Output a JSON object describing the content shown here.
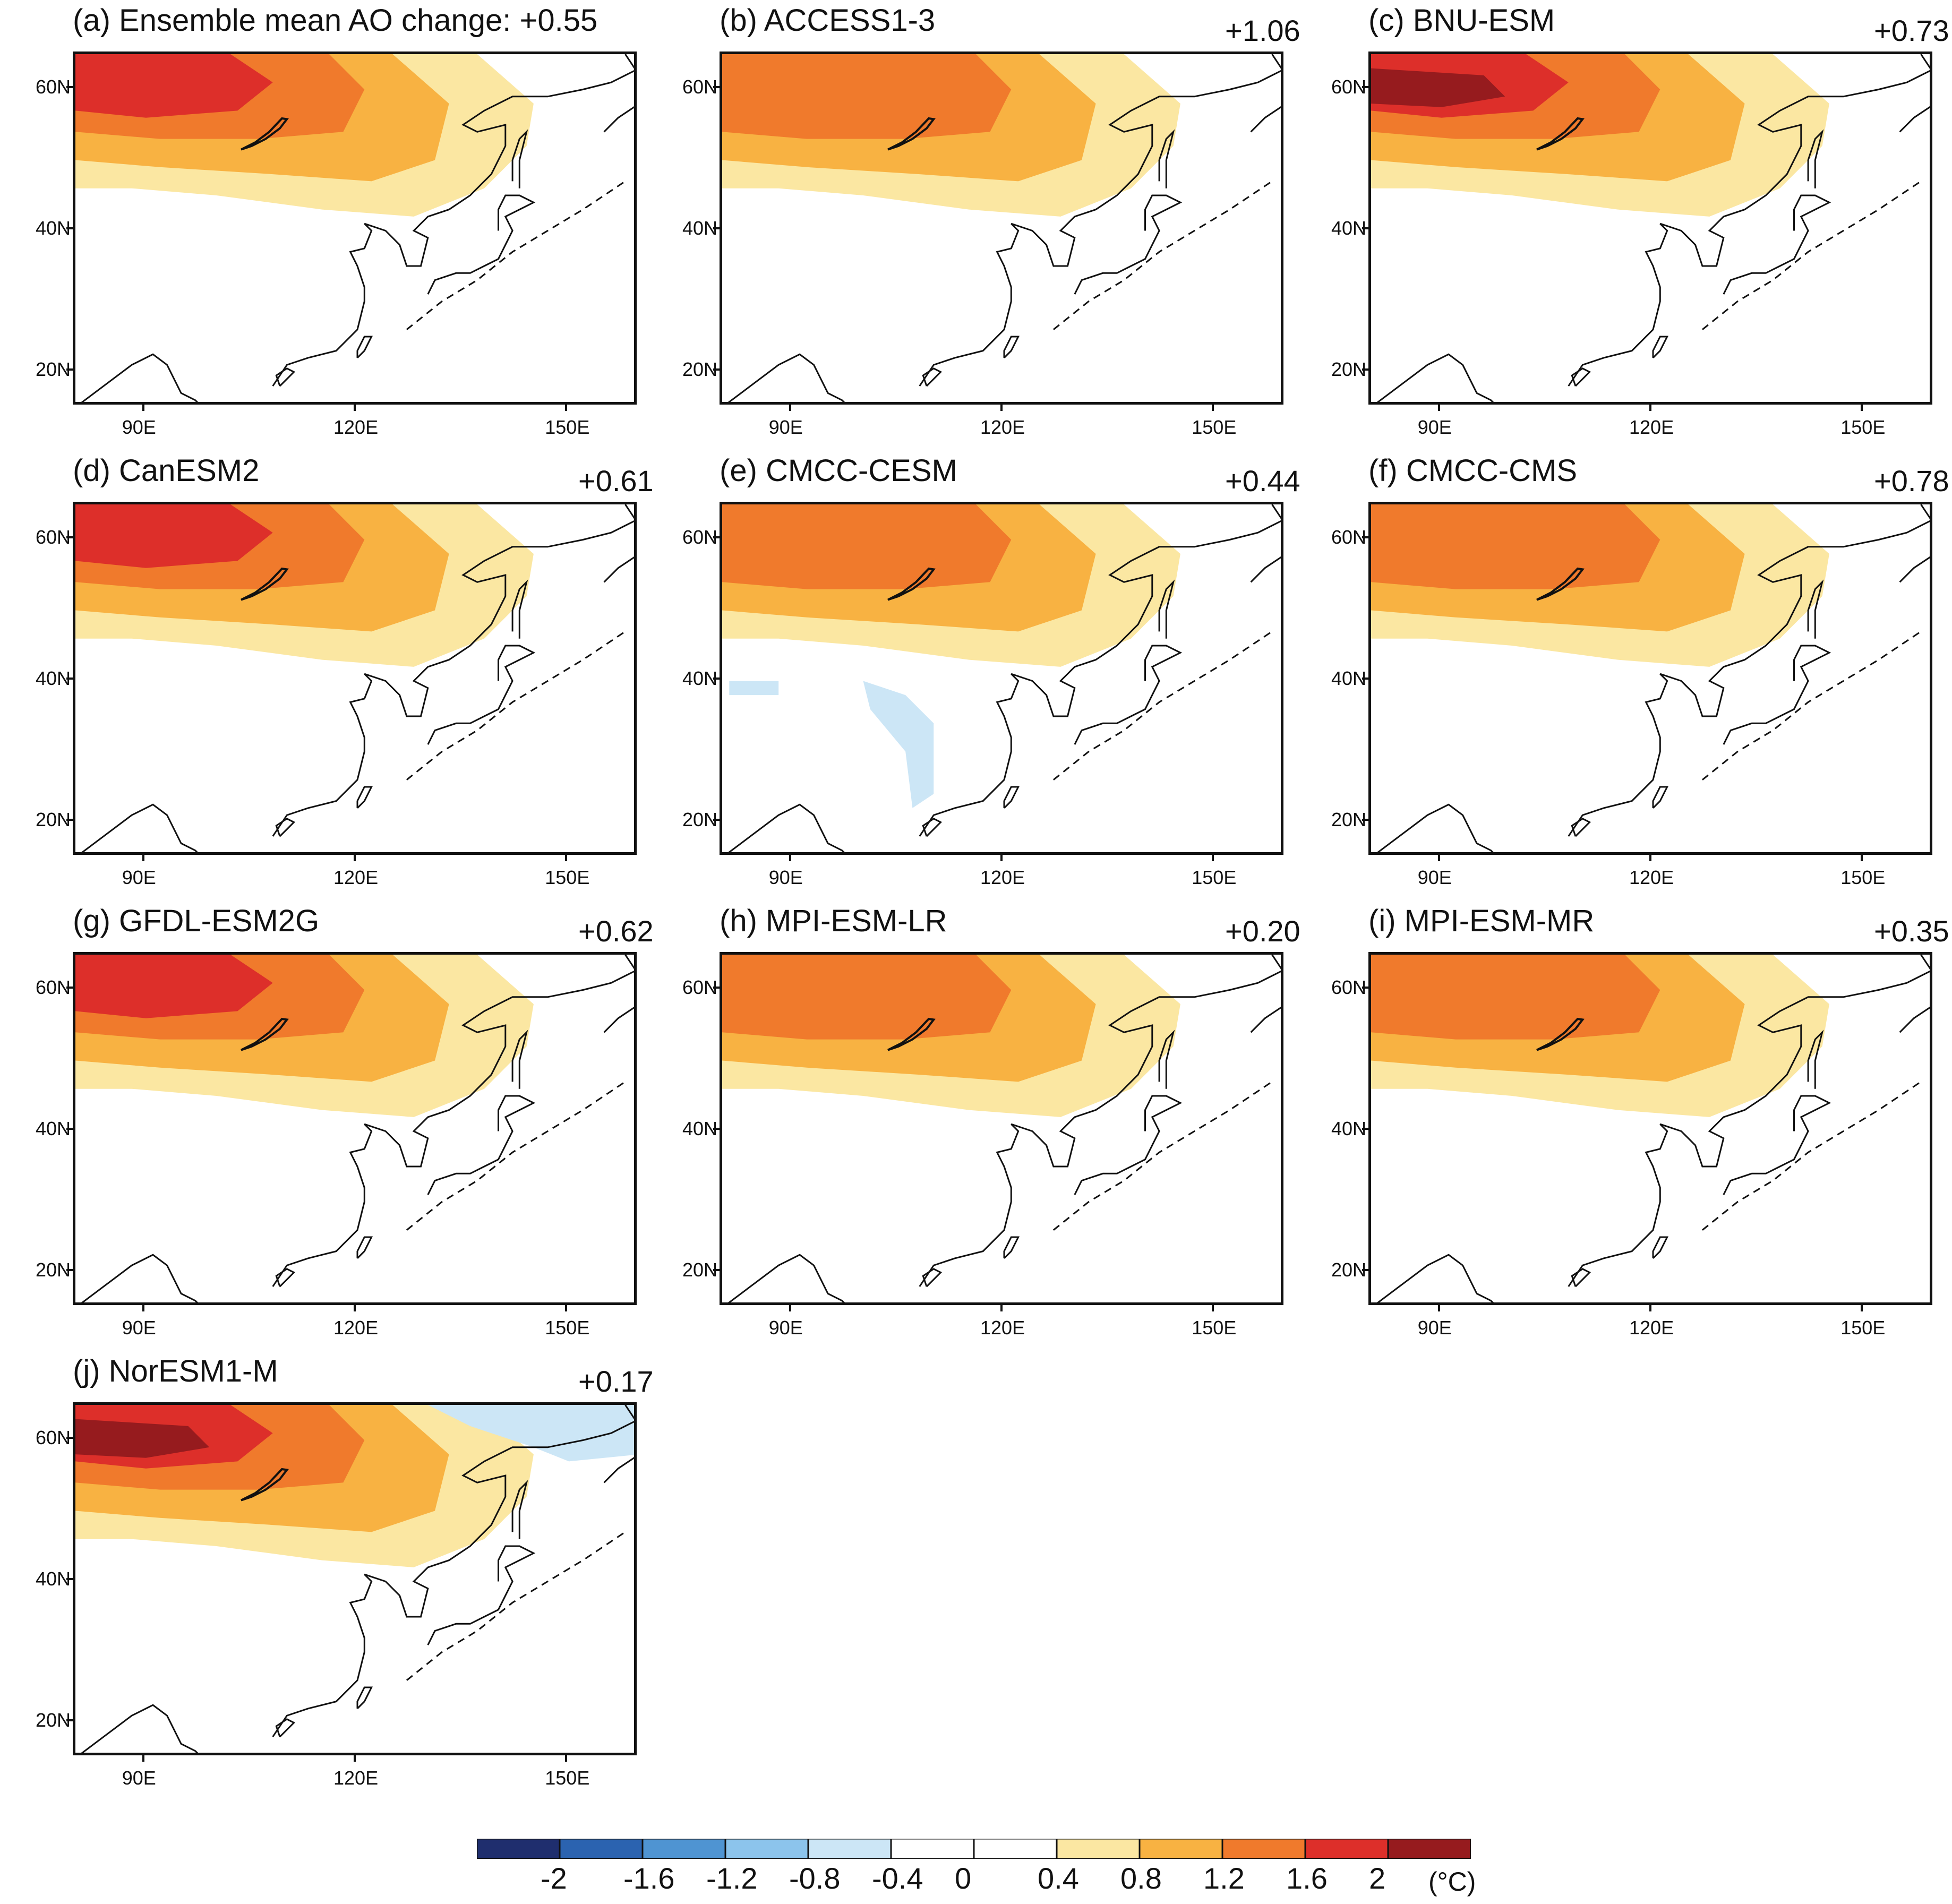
{
  "chart_data": {
    "type": "heatmap",
    "description_units": "°C",
    "colorbar": {
      "ticks": [
        "-2",
        "-1.6",
        "-1.2",
        "-0.8",
        "-0.4",
        "0",
        "0.4",
        "0.8",
        "1.2",
        "1.6",
        "2"
      ],
      "levels": [
        -2.4,
        -2.0,
        -1.6,
        -1.2,
        -0.8,
        -0.4,
        0.0,
        0.4,
        0.8,
        1.2,
        1.6,
        2.0,
        2.4
      ],
      "colors": [
        "#1f2e6e",
        "#2b63b0",
        "#4f94d2",
        "#8cc4ec",
        "#cce6f6",
        "#ffffff",
        "#ffffff",
        "#fbe7a2",
        "#f8b242",
        "#f07a2c",
        "#dd2f2a",
        "#961b1e"
      ],
      "unit": "(°C)"
    },
    "x_ticks": [
      "90E",
      "120E",
      "150E"
    ],
    "y_ticks": [
      "60N",
      "40N",
      "20N"
    ],
    "panels": [
      {
        "title": "(a) Ensemble mean AO change: +0.55",
        "value": "",
        "levels": [
          0.4,
          0.8,
          1.2,
          1.6,
          2.0
        ],
        "peak": 1.6
      },
      {
        "title": "(b) ACCESS1-3",
        "value": "+1.06",
        "peak": 1.2
      },
      {
        "title": "(c) BNU-ESM",
        "value": "+0.73",
        "peak": 2.0
      },
      {
        "title": "(d) CanESM2",
        "value": "+0.61",
        "peak": 1.6
      },
      {
        "title": "(e) CMCC-CESM",
        "value": "+0.44",
        "peak": 1.2
      },
      {
        "title": "(f) CMCC-CMS",
        "value": "+0.78",
        "peak": 1.2
      },
      {
        "title": "(g) GFDL-ESM2G",
        "value": "+0.62",
        "peak": 1.6
      },
      {
        "title": "(h) MPI-ESM-LR",
        "value": "+0.20",
        "peak": 1.2
      },
      {
        "title": "(i) MPI-ESM-MR",
        "value": "+0.35",
        "peak": 1.2
      },
      {
        "title": "(j) NorESM1-M",
        "value": "+0.17",
        "peak": 2.0
      }
    ]
  }
}
